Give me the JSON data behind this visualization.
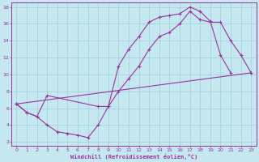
{
  "xlabel": "Windchill (Refroidissement éolien,°C)",
  "xlim": [
    -0.5,
    23.5
  ],
  "ylim": [
    1.5,
    18.5
  ],
  "yticks": [
    2,
    4,
    6,
    8,
    10,
    12,
    14,
    16,
    18
  ],
  "xticks": [
    0,
    1,
    2,
    3,
    4,
    5,
    6,
    7,
    8,
    9,
    10,
    11,
    12,
    13,
    14,
    15,
    16,
    17,
    18,
    19,
    20,
    21,
    22,
    23
  ],
  "bg_color": "#c5e8f0",
  "grid_color": "#9dcfda",
  "line_color": "#993399",
  "line1_x": [
    0,
    1,
    2,
    3,
    4,
    5,
    6,
    7,
    8,
    9,
    10,
    11,
    12,
    13,
    14,
    15,
    16,
    17,
    18,
    19,
    20,
    21,
    22,
    23
  ],
  "line1_y": [
    6.5,
    5.5,
    5.0,
    4.0,
    3.2,
    3.0,
    2.8,
    2.5,
    4.0,
    6.2,
    11.0,
    13.0,
    14.5,
    16.2,
    16.8,
    17.0,
    17.2,
    18.0,
    17.5,
    16.3,
    12.3,
    10.2,
    null,
    null
  ],
  "line2_x": [
    0,
    23
  ],
  "line2_y": [
    6.5,
    10.2
  ],
  "line3_x": [
    0,
    1,
    2,
    3,
    8,
    9,
    10,
    11,
    12,
    13,
    14,
    15,
    16,
    17,
    18,
    19,
    20,
    21,
    22,
    23
  ],
  "line3_y": [
    6.5,
    5.5,
    5.0,
    7.5,
    6.2,
    6.2,
    8.0,
    9.5,
    11.0,
    13.0,
    14.5,
    15.0,
    16.0,
    17.5,
    16.5,
    16.2,
    16.2,
    14.0,
    12.3,
    10.2
  ]
}
